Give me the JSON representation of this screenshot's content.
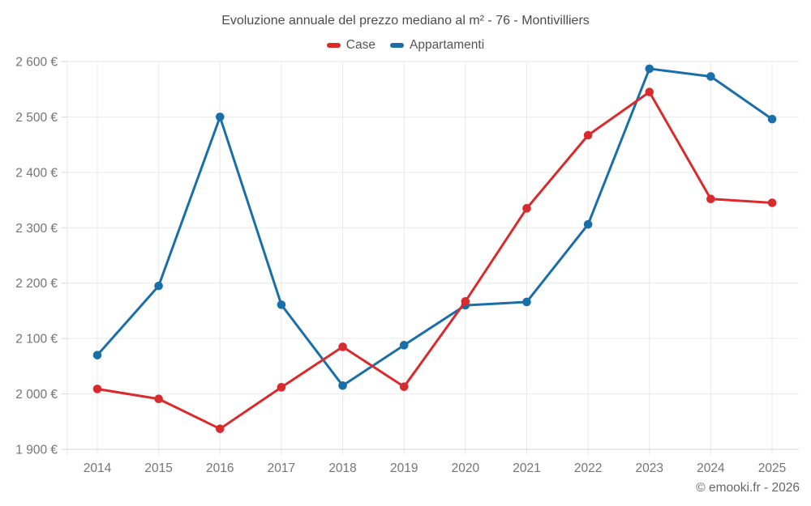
{
  "chart_data": {
    "type": "line",
    "title": "Evoluzione annuale del prezzo mediano al m² - 76 - Montivilliers",
    "categories": [
      "2014",
      "2015",
      "2016",
      "2017",
      "2018",
      "2019",
      "2020",
      "2021",
      "2022",
      "2023",
      "2024",
      "2025"
    ],
    "series": [
      {
        "name": "Case",
        "color": "#d92b2e",
        "values": [
          2009,
          1991,
          1937,
          2012,
          2085,
          2013,
          2167,
          2335,
          2467,
          2545,
          2352,
          2345
        ]
      },
      {
        "name": "Appartamenti",
        "color": "#1b6fa8",
        "values": [
          2070,
          2195,
          2500,
          2161,
          2015,
          2088,
          2160,
          2166,
          2306,
          2587,
          2573,
          2496
        ]
      }
    ],
    "xlabel": "",
    "ylabel": "",
    "ylim": [
      1900,
      2600
    ],
    "ytick_step": 100,
    "ytick_labels": [
      "1 900 €",
      "2 000 €",
      "2 100 €",
      "2 200 €",
      "2 300 €",
      "2 400 €",
      "2 500 €",
      "2 600 €"
    ],
    "grid": true,
    "legend_position": "top",
    "marker": "circle"
  },
  "footer": {
    "text": "© emooki.fr - 2026"
  }
}
